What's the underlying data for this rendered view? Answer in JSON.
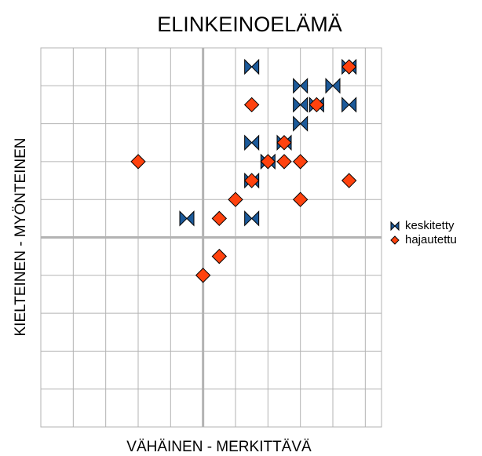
{
  "chart_data": {
    "type": "scatter",
    "title": "ELINKEINOELÄMÄ",
    "xlabel": "VÄHÄINEN - MERKITTÄVÄ",
    "ylabel": "KIELTEINEN - MYÖNTEINEN",
    "xlim": [
      -5,
      5.5
    ],
    "ylim": [
      -5,
      5
    ],
    "xticks": [
      -5,
      -4,
      -3,
      -2,
      -1,
      0,
      1,
      2,
      3,
      4,
      5
    ],
    "yticks": [
      -5,
      -4,
      -3,
      -2,
      -1,
      0,
      1,
      2,
      3,
      4,
      5
    ],
    "grid": true,
    "legend": "right",
    "series": [
      {
        "name": "keskitetty",
        "color": "#1c5a9a",
        "marker": "bowtie",
        "x": [
          1.5,
          4.5,
          3,
          4,
          3,
          3.5,
          4.5,
          3,
          1.5,
          2.5,
          2,
          1.5,
          -0.5,
          1.5
        ],
        "values": [
          4.5,
          4.5,
          4,
          4,
          3.5,
          3.5,
          3.5,
          3,
          2.5,
          2.5,
          2,
          1.5,
          0.5,
          0.5
        ]
      },
      {
        "name": "hajautettu",
        "color": "#ff420e",
        "marker": "diamond",
        "x": [
          4.5,
          1.5,
          3.5,
          2.5,
          -2,
          2,
          2.5,
          3,
          4.5,
          1.5,
          1,
          3,
          0.5,
          0.5,
          0
        ],
        "values": [
          4.5,
          3.5,
          3.5,
          2.5,
          2,
          2,
          2,
          2,
          1.5,
          1.5,
          1,
          1,
          0.5,
          -0.5,
          -1
        ]
      }
    ]
  }
}
